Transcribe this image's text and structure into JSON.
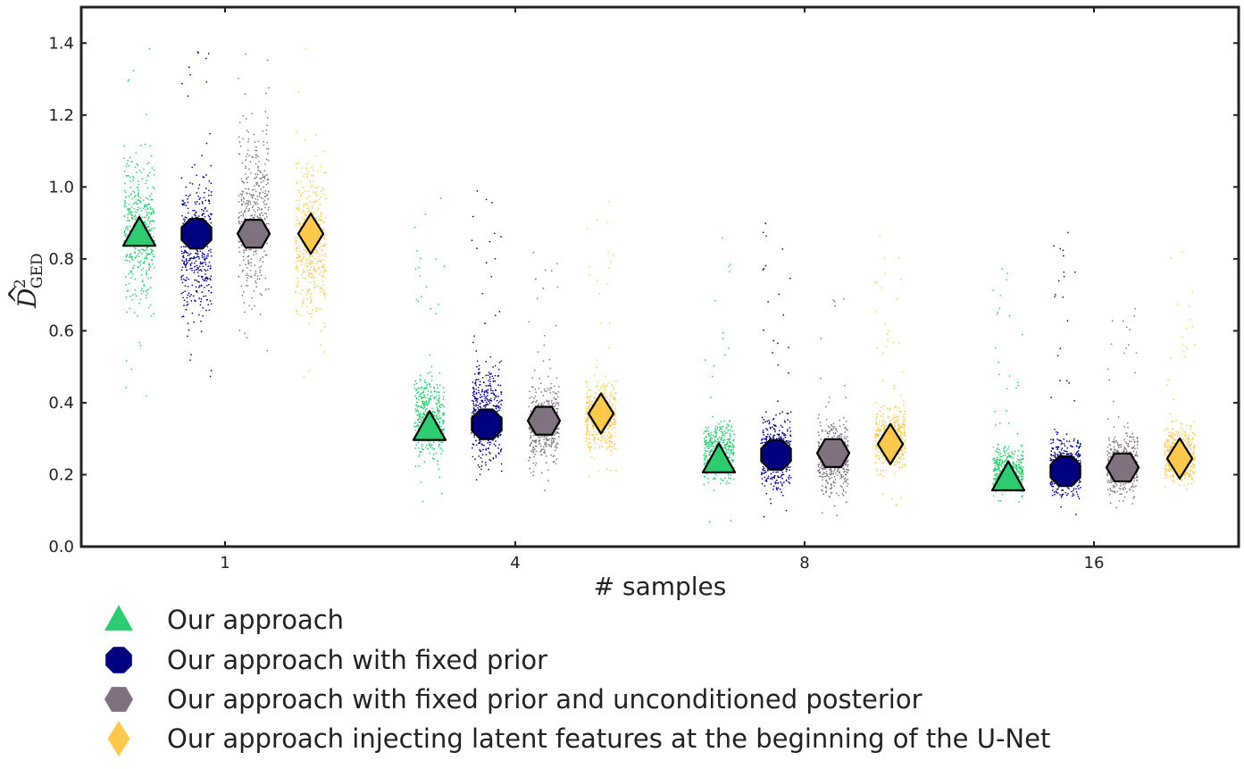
{
  "chart_data": {
    "type": "scatter",
    "title": "",
    "xlabel": "# samples",
    "ylabel": {
      "main": "D",
      "subscript": "GED",
      "superscript": "2"
    },
    "categories": [
      "1",
      "4",
      "8",
      "16"
    ],
    "ylim": [
      0.0,
      1.5
    ],
    "yticks": [
      "0.0",
      "0.2",
      "0.4",
      "0.6",
      "0.8",
      "1.0",
      "1.2",
      "1.4"
    ],
    "grid": false,
    "legend_position": "bottom-left",
    "series": [
      {
        "name": "Our approach",
        "marker": "triangle",
        "color": "#2ecc71",
        "means": [
          0.87,
          0.33,
          0.24,
          0.19
        ],
        "spread": [
          [
            0.4,
            1.4
          ],
          [
            0.12,
            0.97
          ],
          [
            0.04,
            0.86
          ],
          [
            0.05,
            0.81
          ]
        ],
        "core": [
          [
            0.58,
            1.18
          ],
          [
            0.2,
            0.52
          ],
          [
            0.15,
            0.38
          ],
          [
            0.12,
            0.3
          ]
        ]
      },
      {
        "name": "Our approach with fixed prior",
        "marker": "octagon",
        "color": "#000080",
        "means": [
          0.87,
          0.34,
          0.255,
          0.21
        ],
        "spread": [
          [
            0.47,
            1.4
          ],
          [
            0.12,
            1.0
          ],
          [
            0.07,
            0.92
          ],
          [
            0.06,
            0.88
          ]
        ],
        "core": [
          [
            0.55,
            1.11
          ],
          [
            0.18,
            0.56
          ],
          [
            0.12,
            0.4
          ],
          [
            0.1,
            0.35
          ]
        ]
      },
      {
        "name": "Our approach with fixed prior and unconditioned posterior",
        "marker": "hexagon",
        "color": "#7f7180",
        "means": [
          0.87,
          0.35,
          0.26,
          0.22
        ],
        "spread": [
          [
            0.45,
            1.41
          ],
          [
            0.12,
            0.86
          ],
          [
            0.08,
            0.69
          ],
          [
            0.05,
            0.67
          ]
        ],
        "core": [
          [
            0.6,
            1.25
          ],
          [
            0.18,
            0.5
          ],
          [
            0.12,
            0.38
          ],
          [
            0.1,
            0.35
          ]
        ]
      },
      {
        "name": "Our approach injecting latent features at the beginning of the U-Net",
        "marker": "diamond",
        "color": "#ffc94d",
        "means": [
          0.87,
          0.37,
          0.285,
          0.245
        ],
        "spread": [
          [
            0.43,
            1.4
          ],
          [
            0.12,
            0.96
          ],
          [
            0.1,
            0.87
          ],
          [
            0.07,
            0.84
          ]
        ],
        "core": [
          [
            0.55,
            1.15
          ],
          [
            0.22,
            0.5
          ],
          [
            0.17,
            0.42
          ],
          [
            0.14,
            0.37
          ]
        ]
      }
    ]
  }
}
